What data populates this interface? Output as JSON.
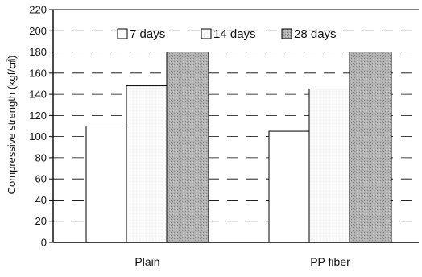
{
  "chart_data": {
    "type": "bar",
    "categories": [
      "Plain",
      "PP  fiber"
    ],
    "series": [
      {
        "name": "7 days",
        "values": [
          110,
          105
        ],
        "color": "#ffffff"
      },
      {
        "name": "14 days",
        "values": [
          148,
          145
        ],
        "color": "#f7f7f7"
      },
      {
        "name": "28 days",
        "values": [
          180,
          180
        ],
        "color": "#b8b8b8"
      }
    ],
    "title": "",
    "xlabel": "",
    "ylabel": "Compressive strength (kgf/㎠)",
    "ylim": [
      0,
      220
    ],
    "yticks": [
      0,
      20,
      40,
      60,
      80,
      100,
      120,
      140,
      160,
      180,
      200,
      220
    ],
    "grid": "dashed horizontal",
    "legend_position": "top"
  }
}
